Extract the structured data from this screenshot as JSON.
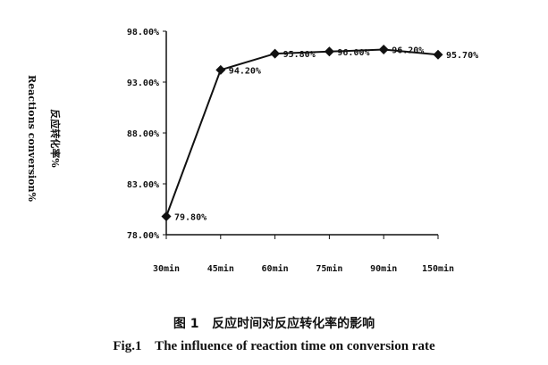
{
  "chart_data": {
    "type": "line",
    "categories": [
      "30min",
      "45min",
      "60min",
      "75min",
      "90min",
      "150min"
    ],
    "series": [
      {
        "values": [
          79.8,
          94.2,
          95.8,
          96.0,
          96.2,
          95.7
        ]
      }
    ],
    "data_labels": [
      "79.80%",
      "94.20%",
      "95.80%",
      "96.00%",
      "96.20%",
      "95.70%"
    ],
    "yticks": [
      78,
      83,
      88,
      93,
      98
    ],
    "ytick_labels": [
      "78.00%",
      "83.00%",
      "88.00%",
      "93.00%",
      "98.00%"
    ],
    "ylim": [
      78,
      98
    ],
    "ylabel_cn": "反应转化率%",
    "ylabel_en": "Reactions conversion%",
    "xlabel": "",
    "grid": false,
    "marker": "diamond",
    "line_color": "#111111"
  },
  "caption": {
    "cn": "图 1   反应时间对反应转化率的影响",
    "en": "Fig.1    The influence of reaction time on conversion rate"
  }
}
